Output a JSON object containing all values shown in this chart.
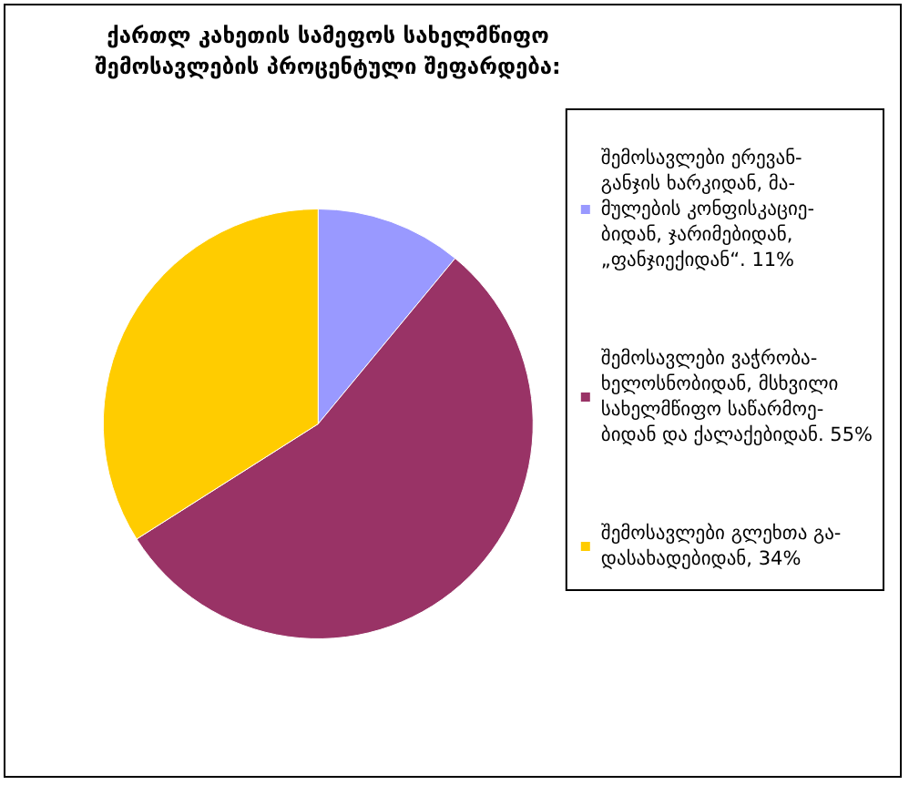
{
  "chart_data": {
    "type": "pie",
    "title": "ქართლ კახეთის სამეფოს სახელმწიფო\nშემოსავლების პროცენტული შეფარდება:",
    "categories": [
      "შემოსავლები ერევან-\nგანჯის ხარკიდან, მა-\nმულების კონფისკაციე-\nბიდან, ჯარიმებიდან,\n„ფანჯიექიდან“. 11%",
      "შემოსავლები ვაჭრობა-\nხელოსნობიდან, მსხვილი\nსახელმწიფო საწარმოე-\nბიდან და ქალაქებიდან. 55%",
      "შემოსავლები გლეხთა გა-\nდასახადებიდან, 34%"
    ],
    "values": [
      11,
      55,
      34
    ],
    "colors": [
      "#9999ff",
      "#993366",
      "#ffcc00"
    ],
    "legend": "right"
  }
}
